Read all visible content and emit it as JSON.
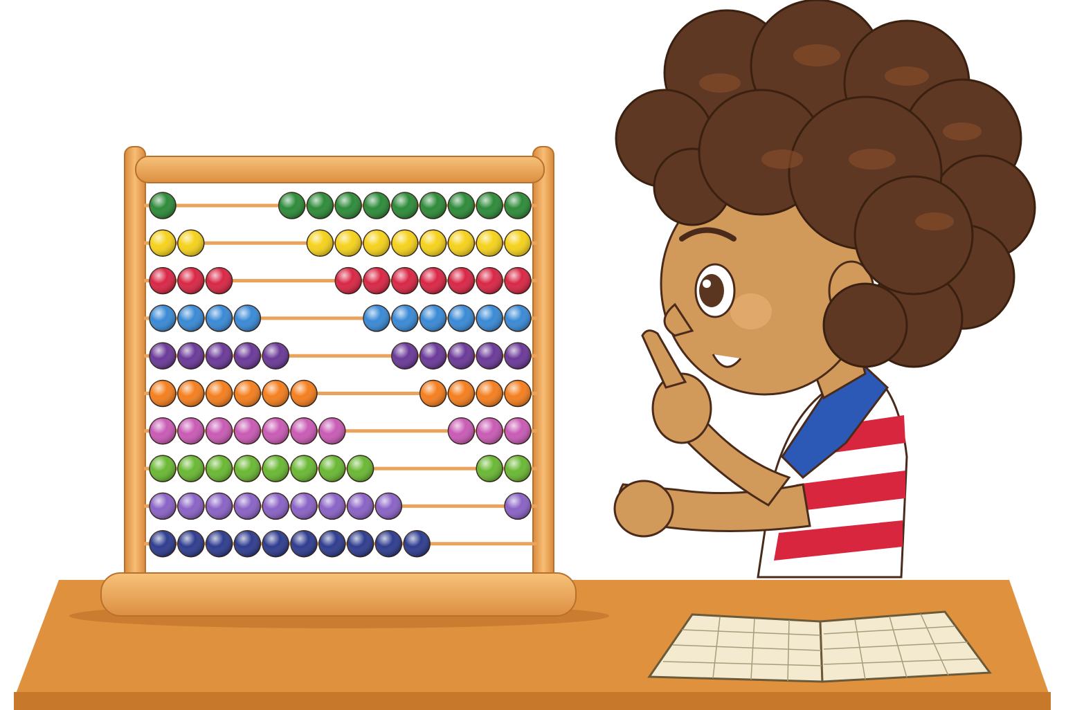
{
  "scene": {
    "subject": "boy-counting-with-abacus",
    "background_color": "#ffffff"
  },
  "abacus": {
    "wood_color": "#f2a65a",
    "wood_dark": "#c77a2f",
    "rod_color": "#e9a35c",
    "rows": [
      {
        "color": "#2e8b3a",
        "left_count": 1,
        "right_count": 9
      },
      {
        "color": "#f5d21c",
        "left_count": 2,
        "right_count": 8
      },
      {
        "color": "#d92746",
        "left_count": 3,
        "right_count": 7
      },
      {
        "color": "#3a8ad6",
        "left_count": 4,
        "right_count": 6
      },
      {
        "color": "#6b3a99",
        "left_count": 5,
        "right_count": 5
      },
      {
        "color": "#f47f1f",
        "left_count": 6,
        "right_count": 4
      },
      {
        "color": "#c95bb5",
        "left_count": 7,
        "right_count": 3
      },
      {
        "color": "#6ab834",
        "left_count": 8,
        "right_count": 2
      },
      {
        "color": "#8a63c6",
        "left_count": 9,
        "right_count": 1
      },
      {
        "color": "#2f3d8f",
        "left_count": 10,
        "right_count": 0
      }
    ]
  },
  "desk": {
    "top_color": "#e0913d",
    "front_color": "#c8782a"
  },
  "boy": {
    "hair_color": "#5e3822",
    "skin_color": "#d19a5a",
    "shirt_red": "#d7263d",
    "shirt_blue": "#2b59b5"
  },
  "notebook": {
    "page_color": "#f3ead0",
    "grid_color": "#a99c79"
  }
}
